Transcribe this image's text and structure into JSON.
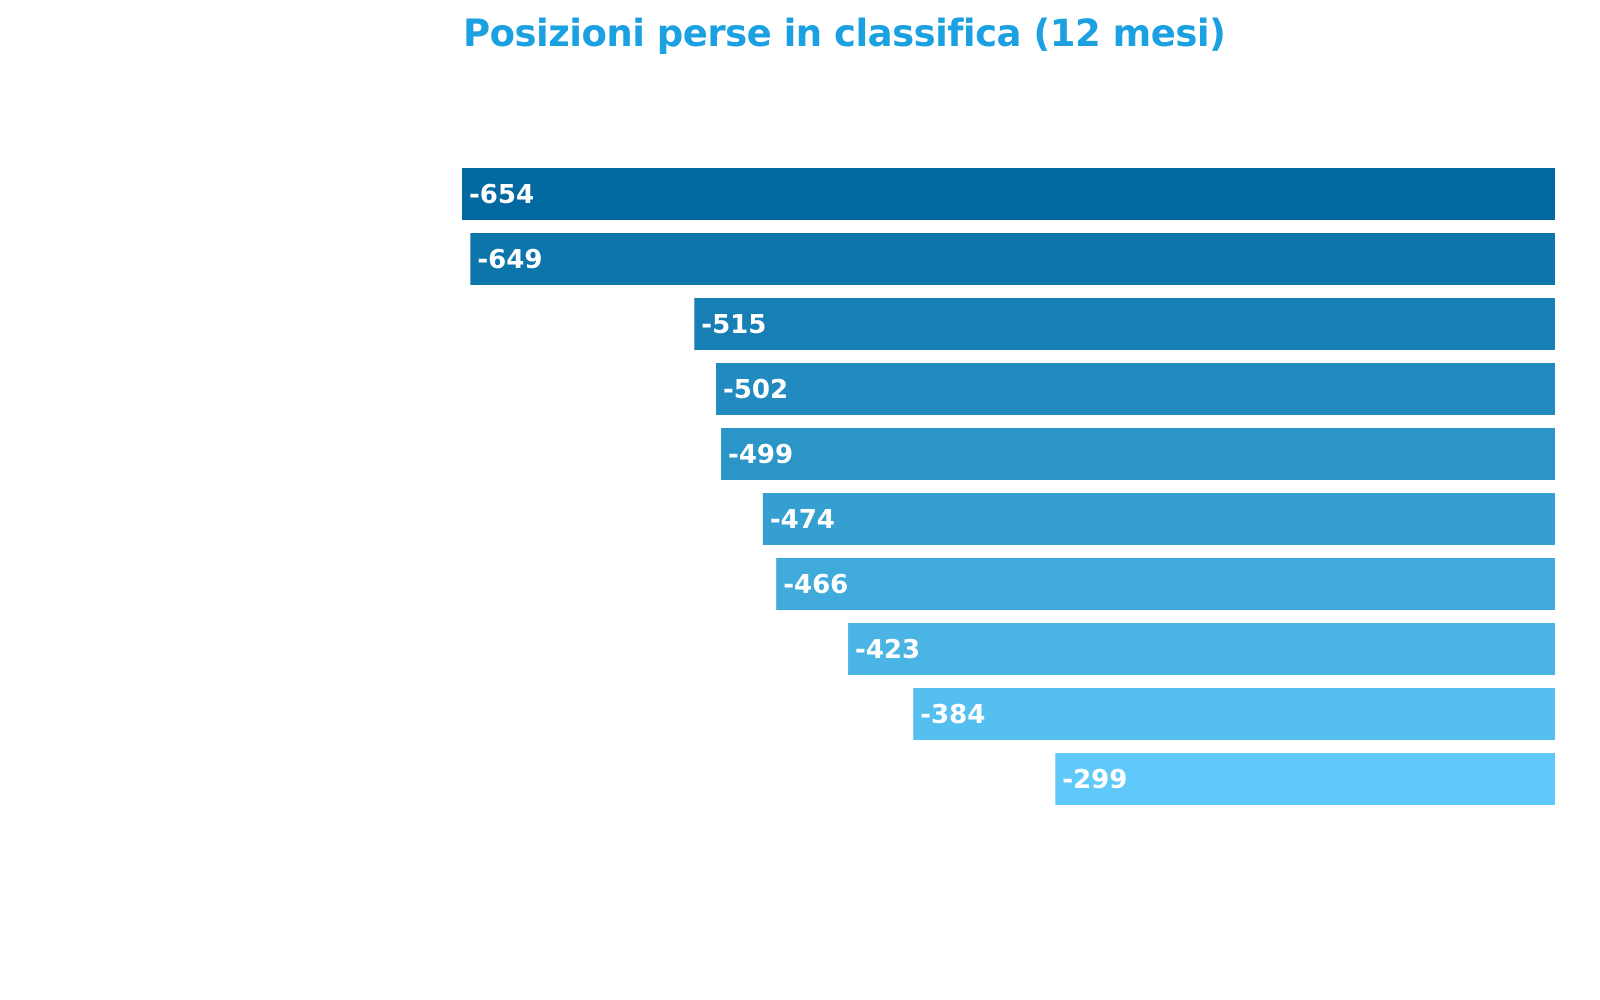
{
  "colors": {
    "title": "#1ba1e2",
    "bar_dark": "#026aa0",
    "bar_light": "#5fcaf9",
    "label": "#ffffff"
  },
  "chart_data": {
    "type": "bar",
    "orientation": "horizontal",
    "title": "Posizioni perse in classifica (12 mesi)",
    "values": [
      -654,
      -649,
      -515,
      -502,
      -499,
      -474,
      -466,
      -423,
      -384,
      -299
    ],
    "data_labels": [
      "-654",
      "-649",
      "-515",
      "-502",
      "-499",
      "-474",
      "-466",
      "-423",
      "-384",
      "-299"
    ],
    "xlim": [
      -654,
      0
    ],
    "grid": false,
    "legend": "none"
  }
}
